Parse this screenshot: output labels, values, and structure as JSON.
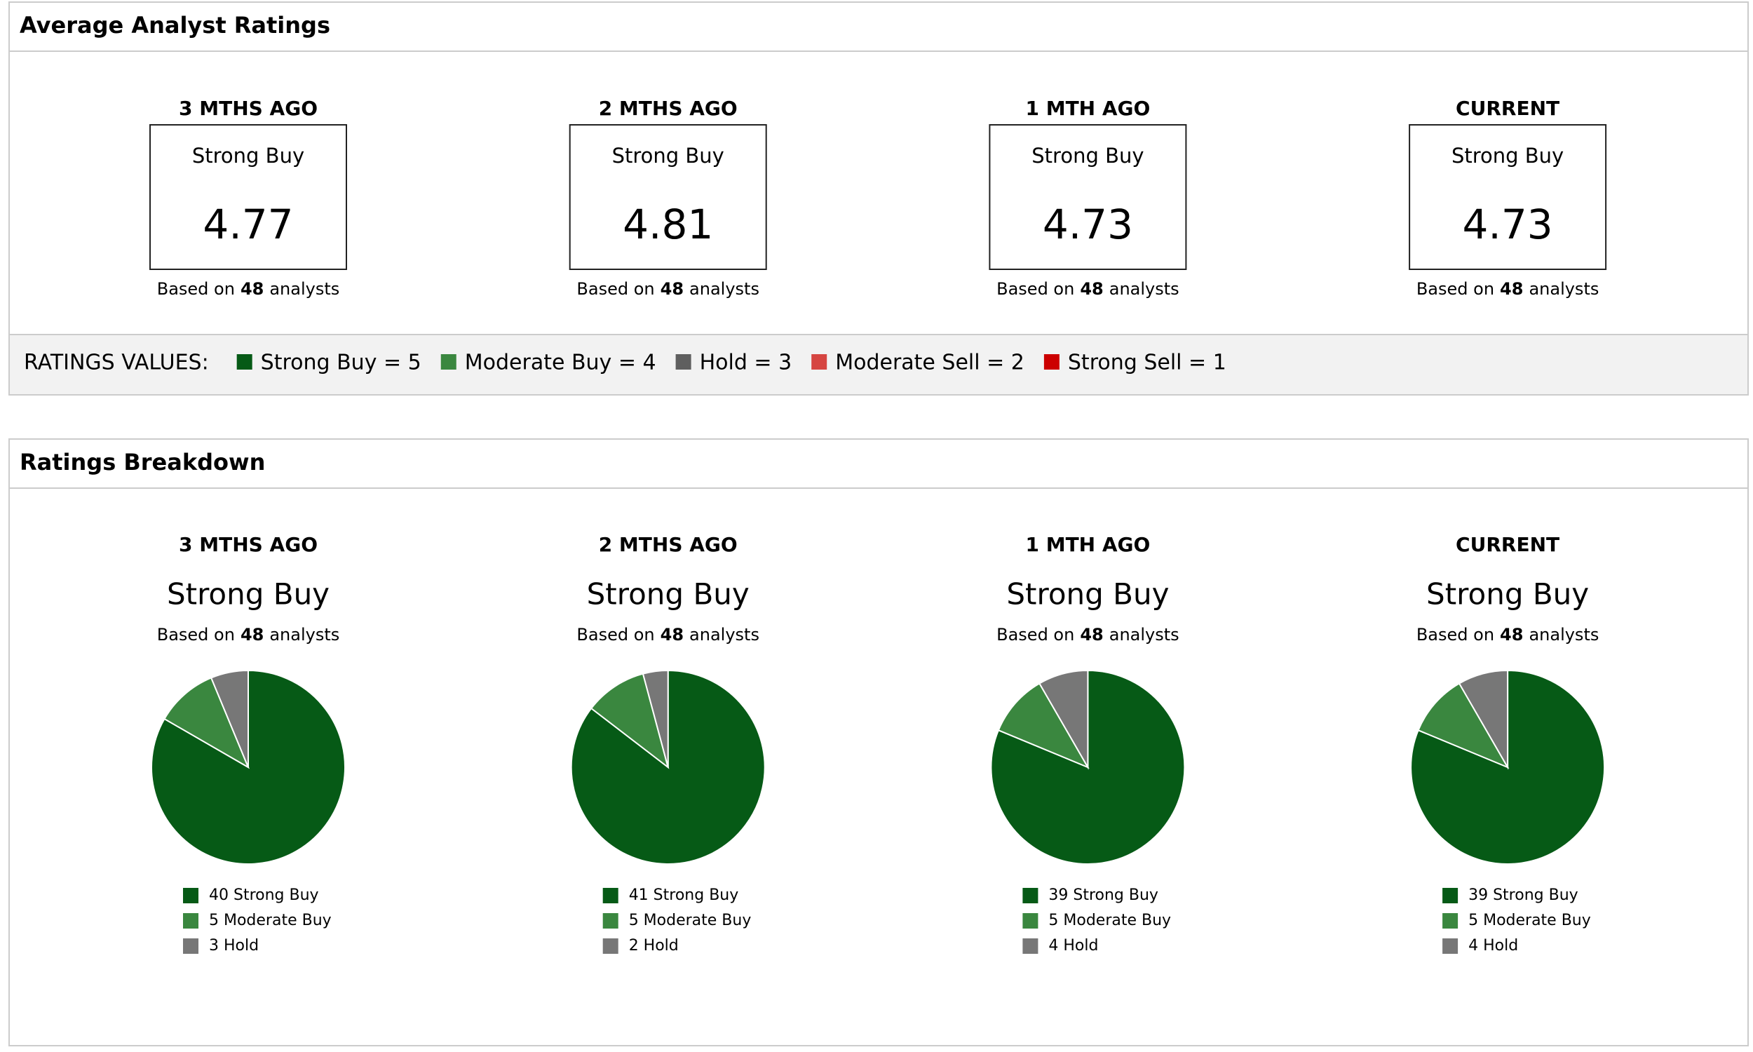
{
  "based_on": "Based on",
  "analysts_word": "analysts",
  "average_ratings": {
    "title": "Average Analyst Ratings",
    "periods": [
      {
        "label": "3 MTHS AGO",
        "rating": "Strong Buy",
        "score": 4.77,
        "analysts": 48
      },
      {
        "label": "2 MTHS AGO",
        "rating": "Strong Buy",
        "score": 4.81,
        "analysts": 48
      },
      {
        "label": "1 MTH AGO",
        "rating": "Strong Buy",
        "score": 4.73,
        "analysts": 48
      },
      {
        "label": "CURRENT",
        "rating": "Strong Buy",
        "score": 4.73,
        "analysts": 48
      }
    ]
  },
  "ratings_values": {
    "label": "RATINGS VALUES:",
    "items": [
      {
        "text": "Strong Buy = 5",
        "color": "#065a16"
      },
      {
        "text": "Moderate Buy = 4",
        "color": "#3a873f"
      },
      {
        "text": "Hold = 3",
        "color": "#5f5f5f"
      },
      {
        "text": "Moderate Sell = 2",
        "color": "#d64541"
      },
      {
        "text": "Strong Sell = 1",
        "color": "#cc0000"
      }
    ]
  },
  "breakdown": {
    "title": "Ratings Breakdown",
    "charts": [
      {
        "type": "pie",
        "title": "3 MTHS AGO",
        "subtitle": "Strong Buy",
        "analysts": 48,
        "categories": [
          "Strong Buy",
          "Moderate Buy",
          "Hold"
        ],
        "values": [
          40,
          5,
          3
        ],
        "value_labels": [
          "40 Strong Buy",
          "5 Moderate Buy",
          "3 Hold"
        ],
        "colors": [
          "#065a16",
          "#3a873f",
          "#777777"
        ]
      },
      {
        "type": "pie",
        "title": "2 MTHS AGO",
        "subtitle": "Strong Buy",
        "analysts": 48,
        "categories": [
          "Strong Buy",
          "Moderate Buy",
          "Hold"
        ],
        "values": [
          41,
          5,
          2
        ],
        "value_labels": [
          "41 Strong Buy",
          "5 Moderate Buy",
          "2 Hold"
        ],
        "colors": [
          "#065a16",
          "#3a873f",
          "#777777"
        ]
      },
      {
        "type": "pie",
        "title": "1 MTH AGO",
        "subtitle": "Strong Buy",
        "analysts": 48,
        "categories": [
          "Strong Buy",
          "Moderate Buy",
          "Hold"
        ],
        "values": [
          39,
          5,
          4
        ],
        "value_labels": [
          "39 Strong Buy",
          "5 Moderate Buy",
          "4 Hold"
        ],
        "colors": [
          "#065a16",
          "#3a873f",
          "#777777"
        ]
      },
      {
        "type": "pie",
        "title": "CURRENT",
        "subtitle": "Strong Buy",
        "analysts": 48,
        "categories": [
          "Strong Buy",
          "Moderate Buy",
          "Hold"
        ],
        "values": [
          39,
          5,
          4
        ],
        "value_labels": [
          "39 Strong Buy",
          "5 Moderate Buy",
          "4 Hold"
        ],
        "colors": [
          "#065a16",
          "#3a873f",
          "#777777"
        ]
      }
    ]
  }
}
